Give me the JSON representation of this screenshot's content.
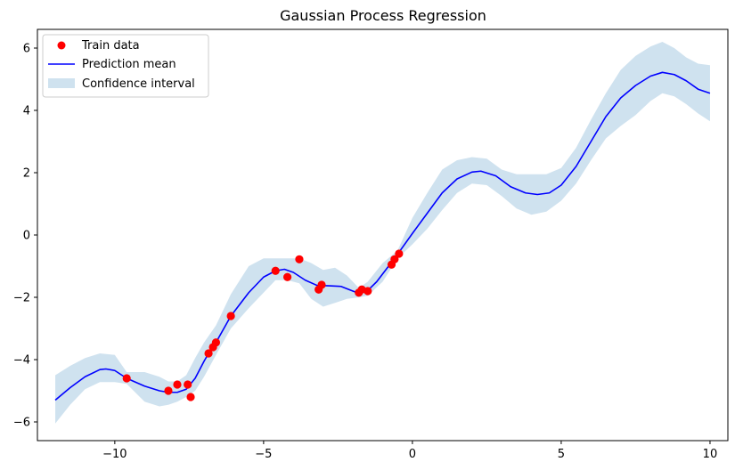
{
  "chart_data": {
    "type": "line",
    "title": "Gaussian Process Regression",
    "xlabel": "",
    "ylabel": "",
    "xlim": [
      -12.6,
      10.6
    ],
    "ylim": [
      -6.6,
      6.6
    ],
    "x_ticks": [
      -10,
      -5,
      0,
      5,
      10
    ],
    "y_ticks": [
      -6,
      -4,
      -2,
      0,
      2,
      4,
      6
    ],
    "x_tick_labels": [
      "−10",
      "−5",
      "0",
      "5",
      "10"
    ],
    "y_tick_labels": [
      "−6",
      "−4",
      "−2",
      "0",
      "2",
      "4",
      "6"
    ],
    "grid": false,
    "legend_position": "upper-left",
    "legend": [
      {
        "label": "Train data",
        "kind": "marker",
        "color": "#ff0000"
      },
      {
        "label": "Prediction mean",
        "kind": "line",
        "color": "#0000ff"
      },
      {
        "label": "Confidence interval",
        "kind": "patch",
        "color": "#cfe2ef"
      }
    ],
    "series": [
      {
        "name": "Train data",
        "kind": "scatter",
        "color": "#ff0000",
        "points": [
          [
            -9.6,
            -4.6
          ],
          [
            -8.2,
            -5.0
          ],
          [
            -7.9,
            -4.8
          ],
          [
            -7.55,
            -4.8
          ],
          [
            -7.45,
            -5.2
          ],
          [
            -6.85,
            -3.8
          ],
          [
            -6.7,
            -3.6
          ],
          [
            -6.6,
            -3.45
          ],
          [
            -6.1,
            -2.6
          ],
          [
            -4.6,
            -1.15
          ],
          [
            -4.2,
            -1.35
          ],
          [
            -3.8,
            -0.78
          ],
          [
            -3.15,
            -1.75
          ],
          [
            -3.05,
            -1.6
          ],
          [
            -1.8,
            -1.85
          ],
          [
            -1.7,
            -1.75
          ],
          [
            -1.5,
            -1.8
          ],
          [
            -0.7,
            -0.95
          ],
          [
            -0.6,
            -0.78
          ],
          [
            -0.45,
            -0.6
          ]
        ]
      },
      {
        "name": "Prediction mean",
        "kind": "line",
        "color": "#0000ff",
        "points": [
          [
            -12.0,
            -5.3
          ],
          [
            -11.5,
            -4.9
          ],
          [
            -11.0,
            -4.55
          ],
          [
            -10.5,
            -4.32
          ],
          [
            -10.3,
            -4.3
          ],
          [
            -10.0,
            -4.35
          ],
          [
            -9.6,
            -4.6
          ],
          [
            -9.0,
            -4.85
          ],
          [
            -8.5,
            -5.0
          ],
          [
            -8.2,
            -5.05
          ],
          [
            -7.9,
            -5.05
          ],
          [
            -7.6,
            -4.95
          ],
          [
            -7.3,
            -4.6
          ],
          [
            -7.0,
            -4.05
          ],
          [
            -6.85,
            -3.8
          ],
          [
            -6.6,
            -3.45
          ],
          [
            -6.1,
            -2.6
          ],
          [
            -5.5,
            -1.85
          ],
          [
            -5.0,
            -1.35
          ],
          [
            -4.6,
            -1.15
          ],
          [
            -4.3,
            -1.1
          ],
          [
            -4.0,
            -1.2
          ],
          [
            -3.6,
            -1.45
          ],
          [
            -3.2,
            -1.62
          ],
          [
            -2.8,
            -1.63
          ],
          [
            -2.4,
            -1.65
          ],
          [
            -2.0,
            -1.8
          ],
          [
            -1.8,
            -1.87
          ],
          [
            -1.5,
            -1.78
          ],
          [
            -1.2,
            -1.5
          ],
          [
            -0.8,
            -1.0
          ],
          [
            -0.5,
            -0.62
          ],
          [
            0.0,
            0.05
          ],
          [
            0.5,
            0.7
          ],
          [
            1.0,
            1.35
          ],
          [
            1.5,
            1.8
          ],
          [
            2.0,
            2.02
          ],
          [
            2.3,
            2.05
          ],
          [
            2.8,
            1.9
          ],
          [
            3.3,
            1.55
          ],
          [
            3.8,
            1.35
          ],
          [
            4.2,
            1.3
          ],
          [
            4.6,
            1.35
          ],
          [
            5.0,
            1.6
          ],
          [
            5.5,
            2.2
          ],
          [
            6.0,
            3.0
          ],
          [
            6.5,
            3.8
          ],
          [
            7.0,
            4.4
          ],
          [
            7.5,
            4.8
          ],
          [
            8.0,
            5.1
          ],
          [
            8.4,
            5.22
          ],
          [
            8.8,
            5.15
          ],
          [
            9.2,
            4.95
          ],
          [
            9.6,
            4.68
          ],
          [
            10.0,
            4.55
          ]
        ]
      },
      {
        "name": "Confidence interval",
        "kind": "band",
        "color": "#cfe2ef",
        "points": [
          [
            -12.0,
            -6.05,
            -4.5
          ],
          [
            -11.5,
            -5.45,
            -4.2
          ],
          [
            -11.0,
            -4.95,
            -3.95
          ],
          [
            -10.5,
            -4.72,
            -3.8
          ],
          [
            -10.0,
            -4.72,
            -3.85
          ],
          [
            -9.6,
            -4.78,
            -4.4
          ],
          [
            -9.0,
            -5.35,
            -4.4
          ],
          [
            -8.5,
            -5.5,
            -4.55
          ],
          [
            -8.2,
            -5.45,
            -4.7
          ],
          [
            -7.9,
            -5.35,
            -4.7
          ],
          [
            -7.6,
            -5.2,
            -4.5
          ],
          [
            -7.3,
            -5.0,
            -3.95
          ],
          [
            -7.0,
            -4.55,
            -3.45
          ],
          [
            -6.6,
            -3.85,
            -2.9
          ],
          [
            -6.1,
            -3.0,
            -1.9
          ],
          [
            -5.5,
            -2.35,
            -1.0
          ],
          [
            -5.0,
            -1.85,
            -0.75
          ],
          [
            -4.6,
            -1.45,
            -0.75
          ],
          [
            -4.2,
            -1.45,
            -0.75
          ],
          [
            -3.8,
            -1.55,
            -0.75
          ],
          [
            -3.4,
            -2.05,
            -0.9
          ],
          [
            -3.0,
            -2.3,
            -1.12
          ],
          [
            -2.6,
            -2.18,
            -1.05
          ],
          [
            -2.2,
            -2.05,
            -1.3
          ],
          [
            -1.8,
            -2.0,
            -1.7
          ],
          [
            -1.5,
            -1.95,
            -1.5
          ],
          [
            -1.0,
            -1.5,
            -0.9
          ],
          [
            -0.5,
            -0.75,
            -0.5
          ],
          [
            0.0,
            -0.3,
            0.55
          ],
          [
            0.5,
            0.2,
            1.35
          ],
          [
            1.0,
            0.8,
            2.1
          ],
          [
            1.5,
            1.35,
            2.4
          ],
          [
            2.0,
            1.65,
            2.5
          ],
          [
            2.5,
            1.6,
            2.45
          ],
          [
            3.0,
            1.25,
            2.1
          ],
          [
            3.5,
            0.85,
            1.95
          ],
          [
            4.0,
            0.65,
            1.95
          ],
          [
            4.5,
            0.75,
            1.95
          ],
          [
            5.0,
            1.1,
            2.15
          ],
          [
            5.5,
            1.65,
            2.8
          ],
          [
            6.0,
            2.4,
            3.7
          ],
          [
            6.5,
            3.1,
            4.55
          ],
          [
            7.0,
            3.5,
            5.3
          ],
          [
            7.5,
            3.85,
            5.75
          ],
          [
            8.0,
            4.3,
            6.05
          ],
          [
            8.4,
            4.55,
            6.2
          ],
          [
            8.8,
            4.45,
            6.0
          ],
          [
            9.2,
            4.2,
            5.7
          ],
          [
            9.6,
            3.9,
            5.5
          ],
          [
            10.0,
            3.65,
            5.45
          ]
        ]
      }
    ]
  }
}
